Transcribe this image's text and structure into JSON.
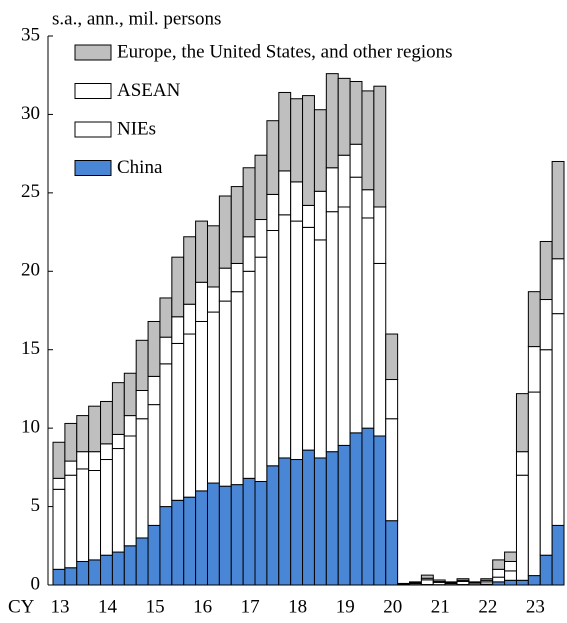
{
  "chart_data": {
    "type": "stacked_bar",
    "ylabel": "s.a., ann., mil.  persons",
    "xlabel": "CY",
    "categories": [
      "13",
      null,
      null,
      null,
      "14",
      null,
      null,
      null,
      "15",
      null,
      null,
      null,
      "16",
      null,
      null,
      null,
      "17",
      null,
      null,
      null,
      "18",
      null,
      null,
      null,
      "19",
      null,
      null,
      null,
      "20",
      null,
      null,
      null,
      "21",
      null,
      null,
      null,
      "22",
      null,
      null,
      null,
      "23",
      null,
      null
    ],
    "series": [
      {
        "name": "China",
        "color": "#4a86d6",
        "values": [
          1.0,
          1.1,
          1.5,
          1.6,
          1.9,
          2.1,
          2.5,
          3.0,
          3.8,
          5.0,
          5.4,
          5.6,
          6.0,
          6.5,
          6.3,
          6.4,
          6.8,
          6.6,
          7.6,
          8.1,
          8.0,
          8.6,
          8.1,
          8.5,
          8.9,
          9.7,
          10.0,
          9.5,
          4.1,
          0.0,
          0.02,
          0.03,
          0.02,
          0.02,
          0.03,
          0.02,
          0.05,
          0.2,
          0.3,
          0.3,
          0.6,
          1.9,
          3.8
        ]
      },
      {
        "name": "NIEs",
        "color": "#ffffff",
        "values": [
          5.1,
          5.9,
          5.9,
          5.7,
          6.1,
          6.6,
          7.0,
          7.6,
          7.7,
          9.1,
          10.0,
          10.4,
          10.8,
          10.9,
          11.8,
          12.3,
          13.2,
          14.3,
          15.0,
          15.5,
          15.2,
          14.2,
          13.9,
          15.3,
          15.2,
          16.3,
          13.4,
          11.0,
          6.5,
          0.05,
          0.08,
          0.3,
          0.15,
          0.08,
          0.2,
          0.1,
          0.15,
          0.3,
          0.6,
          6.7,
          11.7,
          13.1,
          13.5
        ]
      },
      {
        "name": "ASEAN",
        "color": "#ffffff",
        "values": [
          0.7,
          0.9,
          1.1,
          1.2,
          1.0,
          0.9,
          1.3,
          1.8,
          1.8,
          1.7,
          1.7,
          1.9,
          2.5,
          1.6,
          2.1,
          1.8,
          2.2,
          2.4,
          2.3,
          2.8,
          2.5,
          1.4,
          3.1,
          2.8,
          3.3,
          2.1,
          1.8,
          3.6,
          2.5,
          0.02,
          0.05,
          0.1,
          0.05,
          0.05,
          0.07,
          0.03,
          0.1,
          0.5,
          0.6,
          1.5,
          2.9,
          3.2,
          3.5
        ]
      },
      {
        "name": "Europe, the United States, and other regions",
        "color": "#bfbfbf",
        "values": [
          2.3,
          2.4,
          2.3,
          2.9,
          2.7,
          3.3,
          2.7,
          3.2,
          3.5,
          2.5,
          3.8,
          4.3,
          3.9,
          3.9,
          4.6,
          4.9,
          4.4,
          4.1,
          4.7,
          5.0,
          5.3,
          7.0,
          5.2,
          6.0,
          4.9,
          4.0,
          6.3,
          7.7,
          2.9,
          0.03,
          0.05,
          0.2,
          0.1,
          0.05,
          0.1,
          0.05,
          0.1,
          0.6,
          0.6,
          3.7,
          3.5,
          3.7,
          6.2
        ]
      }
    ],
    "legend_order": [
      3,
      2,
      1,
      0
    ],
    "ylim": [
      0,
      35
    ],
    "yticks": [
      0,
      5,
      10,
      15,
      20,
      25,
      30,
      35
    ]
  }
}
